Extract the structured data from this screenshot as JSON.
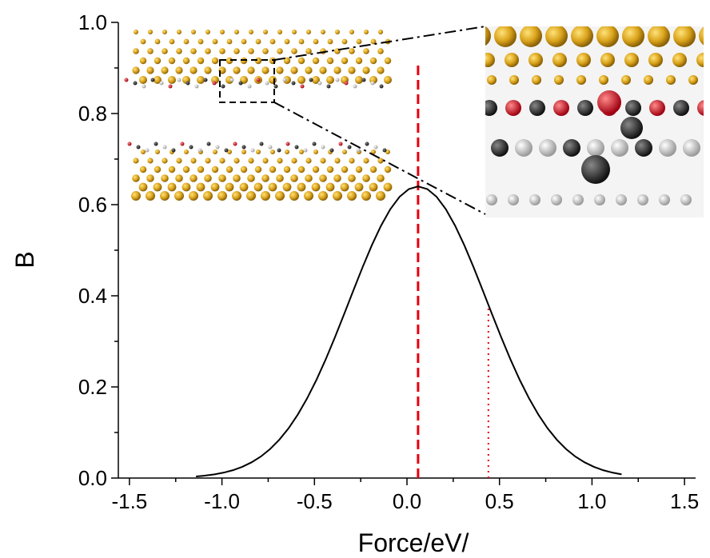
{
  "chart_data": {
    "type": "line",
    "xlabel": "Force/eV/",
    "ylabel": "B",
    "xlim": [
      -1.56,
      1.56
    ],
    "ylim": [
      0,
      1.0
    ],
    "xticks": [
      -1.5,
      {
        "value": -1,
        "label": "-1.0"
      },
      -0.5,
      {
        "value": 0,
        "label": "0.0"
      },
      0.5,
      {
        "value": 1,
        "label": "1.0"
      },
      1.5
    ],
    "yticks": [
      {
        "value": 0,
        "label": "0.0"
      },
      0.2,
      0.4,
      0.6,
      0.8,
      {
        "value": 1,
        "label": "1.0"
      }
    ],
    "xminor": [
      -1.25,
      -0.75,
      -0.25,
      0.25,
      0.75,
      1.25
    ],
    "yminor": [
      0.1,
      0.3,
      0.5,
      0.7,
      0.9
    ],
    "series": [
      {
        "color": "#000000",
        "x": [
          -1.14,
          -1.09,
          -1.04,
          -0.99,
          -0.94,
          -0.89,
          -0.84,
          -0.79,
          -0.74,
          -0.69,
          -0.64,
          -0.59,
          -0.54,
          -0.49,
          -0.44,
          -0.39,
          -0.34,
          -0.29,
          -0.24,
          -0.19,
          -0.14,
          -0.09,
          -0.04,
          0.01,
          0.06,
          0.11,
          0.16,
          0.21,
          0.26,
          0.31,
          0.36,
          0.41,
          0.46,
          0.51,
          0.56,
          0.61,
          0.66,
          0.71,
          0.76,
          0.81,
          0.86,
          0.91,
          0.96,
          1.01,
          1.06,
          1.11,
          1.16
        ],
        "values": [
          0.0036,
          0.0054,
          0.0081,
          0.012,
          0.0173,
          0.0247,
          0.0345,
          0.0472,
          0.0636,
          0.0841,
          0.1092,
          0.1394,
          0.1747,
          0.2149,
          0.2597,
          0.3083,
          0.3594,
          0.4114,
          0.4626,
          0.5108,
          0.554,
          0.5901,
          0.6173,
          0.6342,
          0.64,
          0.6342,
          0.6173,
          0.5901,
          0.554,
          0.5108,
          0.4626,
          0.4114,
          0.3594,
          0.3083,
          0.2597,
          0.2149,
          0.1747,
          0.1394,
          0.1092,
          0.0841,
          0.0636,
          0.0472,
          0.0345,
          0.0247,
          0.0173,
          0.012,
          0.0081
        ]
      }
    ],
    "vlines": [
      {
        "x": 0.06,
        "ymax": 0.91,
        "style": "dashed",
        "color": "#e8000b"
      },
      {
        "x": 0.44,
        "ymax": 0.38,
        "style": "dotted",
        "color": "#e8000b"
      }
    ]
  }
}
